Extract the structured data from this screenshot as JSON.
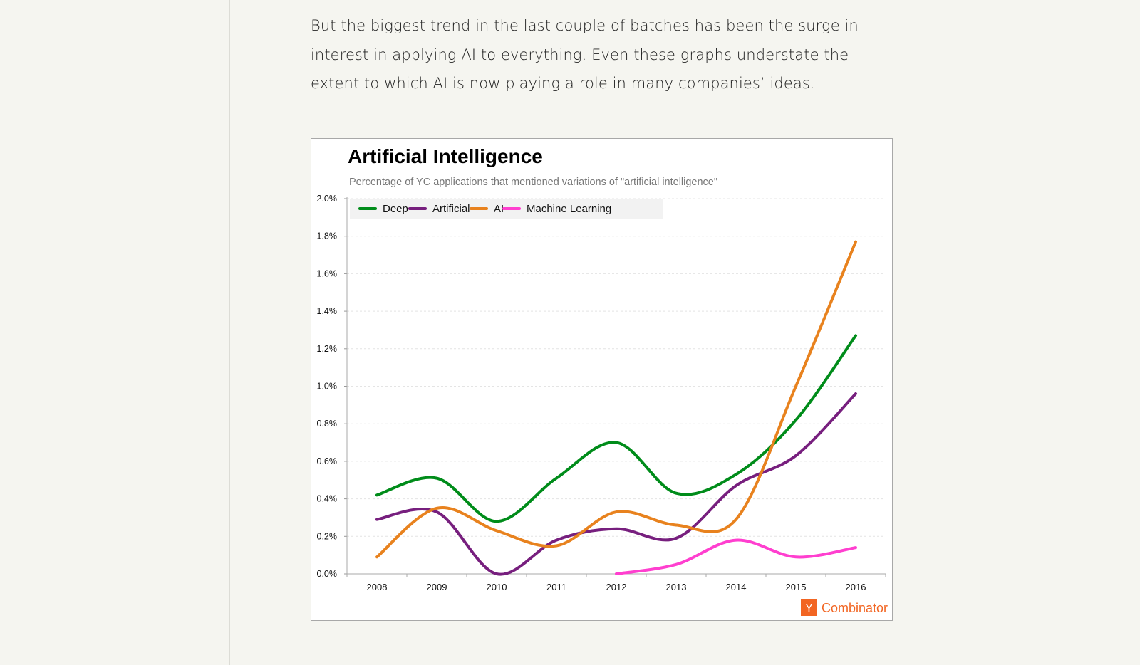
{
  "article": {
    "paragraph": "But the biggest trend in the last couple of batches has been the surge in interest in applying AI to everything. Even these graphs understate the extent to which AI is now playing a role in many companies’ ideas."
  },
  "logo": {
    "mark": "Y",
    "text": "Combinator",
    "color": "#f26522"
  },
  "chart_data": {
    "type": "line",
    "title": "Artificial Intelligence",
    "subtitle": "Percentage of YC applications that mentioned variations of \"artificial intelligence\"",
    "xlabel": "",
    "ylabel": "",
    "x": [
      2008,
      2009,
      2010,
      2011,
      2012,
      2013,
      2014,
      2015,
      2016
    ],
    "x_tick_labels": [
      "2008",
      "2009",
      "2010",
      "2011",
      "2012",
      "2013",
      "2014",
      "2015",
      "2016"
    ],
    "y_tick_labels": [
      "0.0%",
      "0.2%",
      "0.4%",
      "0.6%",
      "0.8%",
      "1.0%",
      "1.2%",
      "1.4%",
      "1.6%",
      "1.8%",
      "2.0%"
    ],
    "ylim": [
      0,
      2.0
    ],
    "grid": true,
    "legend_position": "top-left",
    "series": [
      {
        "name": "Deep",
        "color": "#008c1a",
        "values": [
          0.42,
          0.51,
          0.28,
          0.51,
          0.7,
          0.43,
          0.53,
          0.82,
          1.27
        ]
      },
      {
        "name": "Artificial",
        "color": "#771f7e",
        "values": [
          0.29,
          0.33,
          0.0,
          0.18,
          0.24,
          0.19,
          0.47,
          0.63,
          0.96
        ]
      },
      {
        "name": "AI",
        "color": "#e8821e",
        "values": [
          0.09,
          0.35,
          0.23,
          0.15,
          0.33,
          0.26,
          0.29,
          1.0,
          1.77
        ]
      },
      {
        "name": "Machine Learning",
        "color": "#ff3fcf",
        "values": [
          null,
          null,
          null,
          null,
          0.0,
          0.05,
          0.18,
          0.09,
          0.14
        ]
      }
    ]
  }
}
